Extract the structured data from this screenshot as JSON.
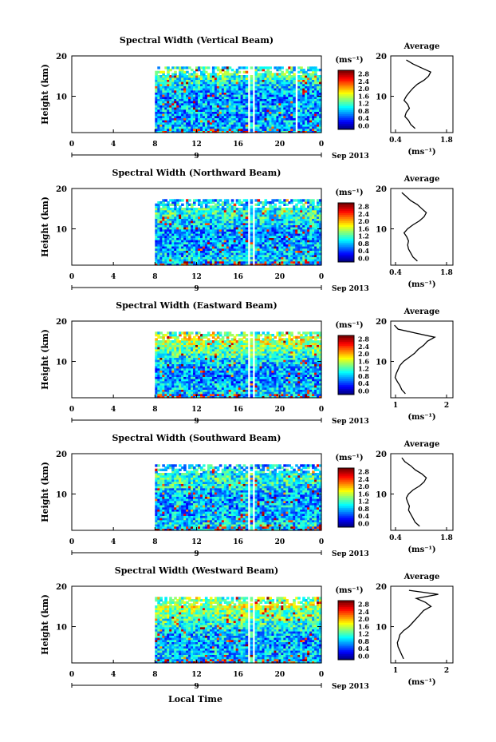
{
  "figure": {
    "x_axis_label": "Local Time",
    "date_label": "Sep 2013",
    "day_label": "9"
  },
  "chart_data": [
    {
      "type": "heatmap",
      "title": "Spectral Width (Vertical Beam)",
      "ylabel": "Height (km)",
      "xlabel": "",
      "x_ticks": [
        "0",
        "4",
        "8",
        "12",
        "16",
        "20",
        "0"
      ],
      "x_range_hours": [
        0,
        24
      ],
      "data_start_hour": 8,
      "gap_hours": [
        [
          16.8,
          17.1
        ],
        [
          17.3,
          17.5
        ],
        [
          21.5,
          21.7
        ]
      ],
      "y_range_km": [
        1,
        20
      ],
      "y_ticks": [
        10,
        20
      ],
      "colorbar": {
        "unit": "(ms⁻¹)",
        "labels": [
          "0.0",
          "0.4",
          "0.8",
          "1.2",
          "1.6",
          "2.0",
          "2.4",
          "2.8"
        ]
      },
      "profile": {
        "title": "Average",
        "xlabel": "(ms⁻¹)",
        "x_ticks": [
          "0.4",
          "1.8"
        ],
        "y_ticks": [
          10,
          20
        ],
        "xlim": [
          0.4,
          1.8
        ],
        "heights_km": [
          2,
          3,
          4,
          5,
          6,
          7,
          8,
          9,
          10,
          11,
          12,
          13,
          14,
          15,
          16,
          17,
          18,
          19
        ],
        "values": [
          0.95,
          0.85,
          0.8,
          0.72,
          0.75,
          0.82,
          0.78,
          0.7,
          0.75,
          0.82,
          0.9,
          1.0,
          1.15,
          1.25,
          1.3,
          1.1,
          0.9,
          0.75
        ]
      }
    },
    {
      "type": "heatmap",
      "title": "Spectral Width (Northward Beam)",
      "ylabel": "Height (km)",
      "xlabel": "",
      "x_ticks": [
        "0",
        "4",
        "8",
        "12",
        "16",
        "20",
        "0"
      ],
      "x_range_hours": [
        0,
        24
      ],
      "data_start_hour": 8,
      "gap_hours": [
        [
          16.8,
          17.1
        ],
        [
          17.3,
          17.5
        ]
      ],
      "y_range_km": [
        1,
        20
      ],
      "y_ticks": [
        10,
        20
      ],
      "colorbar": {
        "unit": "(ms⁻¹)",
        "labels": [
          "0.0",
          "0.4",
          "0.8",
          "1.2",
          "1.6",
          "2.0",
          "2.4",
          "2.8"
        ]
      },
      "profile": {
        "title": "Average",
        "xlabel": "(ms⁻¹)",
        "x_ticks": [
          "0.4",
          "1.8"
        ],
        "y_ticks": [
          10,
          20
        ],
        "xlim": [
          0.4,
          1.8
        ],
        "heights_km": [
          2,
          3,
          4,
          5,
          6,
          7,
          8,
          9,
          10,
          11,
          12,
          13,
          14,
          15,
          16,
          17,
          18,
          19
        ],
        "values": [
          1.0,
          0.9,
          0.85,
          0.8,
          0.78,
          0.8,
          0.76,
          0.7,
          0.78,
          0.9,
          1.05,
          1.15,
          1.2,
          1.1,
          1.0,
          0.85,
          0.75,
          0.65
        ]
      }
    },
    {
      "type": "heatmap",
      "title": "Spectral Width (Eastward Beam)",
      "ylabel": "Height (km)",
      "xlabel": "",
      "x_ticks": [
        "0",
        "4",
        "8",
        "12",
        "16",
        "20",
        "0"
      ],
      "x_range_hours": [
        0,
        24
      ],
      "data_start_hour": 8,
      "gap_hours": [
        [
          16.8,
          17.1
        ],
        [
          17.3,
          17.5
        ]
      ],
      "y_range_km": [
        1,
        20
      ],
      "y_ticks": [
        10,
        20
      ],
      "colorbar": {
        "unit": "(ms⁻¹)",
        "labels": [
          "0.0",
          "0.4",
          "0.8",
          "1.2",
          "1.6",
          "2.0",
          "2.4",
          "2.8"
        ]
      },
      "profile": {
        "title": "Average",
        "xlabel": "(ms⁻¹)",
        "x_ticks": [
          "1",
          "2"
        ],
        "y_ticks": [
          10,
          20
        ],
        "xlim": [
          0.6,
          2.3
        ],
        "heights_km": [
          2,
          3,
          4,
          5,
          6,
          7,
          8,
          9,
          10,
          11,
          12,
          13,
          14,
          15,
          16,
          17,
          18,
          19
        ],
        "values": [
          1.0,
          0.9,
          0.85,
          0.78,
          0.72,
          0.75,
          0.8,
          0.85,
          0.95,
          1.1,
          1.25,
          1.35,
          1.5,
          1.6,
          1.8,
          1.3,
          0.8,
          0.7
        ]
      }
    },
    {
      "type": "heatmap",
      "title": "Spectral Width (Southward Beam)",
      "ylabel": "Height (km)",
      "xlabel": "",
      "x_ticks": [
        "0",
        "4",
        "8",
        "12",
        "16",
        "20",
        "0"
      ],
      "x_range_hours": [
        0,
        24
      ],
      "data_start_hour": 8,
      "gap_hours": [
        [
          16.8,
          17.1
        ],
        [
          17.3,
          17.5
        ]
      ],
      "y_range_km": [
        1,
        20
      ],
      "y_ticks": [
        10,
        20
      ],
      "colorbar": {
        "unit": "(ms⁻¹)",
        "labels": [
          "0.0",
          "0.4",
          "0.8",
          "1.2",
          "1.6",
          "2.0",
          "2.4",
          "2.8"
        ]
      },
      "profile": {
        "title": "Average",
        "xlabel": "(ms⁻¹)",
        "x_ticks": [
          "0.4",
          "1.8"
        ],
        "y_ticks": [
          10,
          20
        ],
        "xlim": [
          0.4,
          1.8
        ],
        "heights_km": [
          2,
          3,
          4,
          5,
          6,
          7,
          8,
          9,
          10,
          11,
          12,
          13,
          14,
          15,
          16,
          17,
          18,
          19
        ],
        "values": [
          1.05,
          0.95,
          0.9,
          0.85,
          0.8,
          0.82,
          0.78,
          0.75,
          0.8,
          0.9,
          1.05,
          1.15,
          1.2,
          1.1,
          0.95,
          0.85,
          0.72,
          0.65
        ]
      }
    },
    {
      "type": "heatmap",
      "title": "Spectral Width (Westward Beam)",
      "ylabel": "Height (km)",
      "xlabel": "",
      "x_ticks": [
        "0",
        "4",
        "8",
        "12",
        "16",
        "20",
        "0"
      ],
      "x_range_hours": [
        0,
        24
      ],
      "data_start_hour": 8,
      "gap_hours": [
        [
          16.8,
          17.1
        ],
        [
          17.3,
          17.5
        ]
      ],
      "y_range_km": [
        1,
        20
      ],
      "y_ticks": [
        10,
        20
      ],
      "colorbar": {
        "unit": "(ms⁻¹)",
        "labels": [
          "0.0",
          "0.4",
          "0.8",
          "1.2",
          "1.6",
          "2.0",
          "2.4",
          "2.8"
        ]
      },
      "profile": {
        "title": "Average",
        "xlabel": "(ms⁻¹)",
        "x_ticks": [
          "1",
          "2"
        ],
        "y_ticks": [
          10,
          20
        ],
        "xlim": [
          0.6,
          2.3
        ],
        "heights_km": [
          2,
          3,
          4,
          5,
          6,
          7,
          8,
          9,
          10,
          11,
          12,
          13,
          14,
          15,
          16,
          17,
          18,
          19
        ],
        "values": [
          0.95,
          0.9,
          0.85,
          0.8,
          0.78,
          0.82,
          0.85,
          0.95,
          1.1,
          1.2,
          1.3,
          1.4,
          1.5,
          1.7,
          1.55,
          1.3,
          1.9,
          1.1
        ]
      }
    }
  ]
}
